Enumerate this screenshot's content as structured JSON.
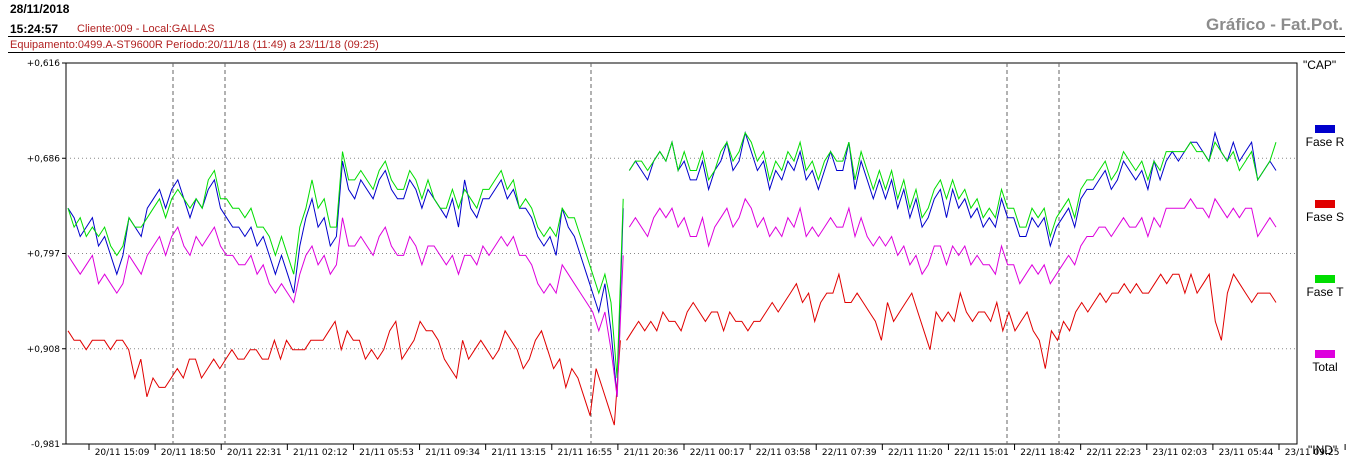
{
  "header": {
    "date": "28/11/2018",
    "time": "15:24:57",
    "client": "Cliente:009 - Local:GALLAS",
    "title": "Gráfico - Fat.Pot.",
    "equipment": "Equipamento:0499.A-ST9600R Período:20/11/18 (11:49) a 23/11/18 (09:25)"
  },
  "chart_data": {
    "type": "line",
    "title": "Gráfico - Fat.Pot.",
    "top_label": "\"CAP\"",
    "bottom_label": "\"IND\"",
    "y_ticks": [
      "+0,616",
      "+0,686",
      "+0,797",
      "+0,908",
      "-0,981"
    ],
    "x_ticks": [
      "20/11 15:09",
      "20/11 18:50",
      "20/11 22:31",
      "21/11 02:12",
      "21/11 05:53",
      "21/11 09:34",
      "21/11 13:15",
      "21/11 16:55",
      "21/11 20:36",
      "22/11 00:17",
      "22/11 03:58",
      "22/11 07:39",
      "22/11 11:20",
      "22/11 15:01",
      "22/11 18:42",
      "22/11 22:23",
      "23/11 02:03",
      "23/11 05:44",
      "23/11 09:25"
    ],
    "grid": true,
    "legend_position": "right",
    "series": [
      {
        "name": "Fase R",
        "color": "#0000cc",
        "values": [
          0.77,
          0.78,
          0.8,
          0.79,
          0.78,
          0.81,
          0.8,
          0.82,
          0.84,
          0.82,
          0.78,
          0.79,
          0.8,
          0.77,
          0.76,
          0.75,
          0.77,
          0.75,
          0.74,
          0.76,
          0.78,
          0.76,
          0.77,
          0.75,
          0.74,
          0.77,
          0.78,
          0.79,
          0.79,
          0.8,
          0.79,
          0.81,
          0.8,
          0.82,
          0.84,
          0.82,
          0.84,
          0.86,
          0.81,
          0.78,
          0.76,
          0.79,
          0.78,
          0.81,
          0.8,
          0.72,
          0.75,
          0.76,
          0.74,
          0.75,
          0.76,
          0.74,
          0.73,
          0.75,
          0.76,
          0.76,
          0.74,
          0.75,
          0.77,
          0.75,
          0.76,
          0.77,
          0.78,
          0.76,
          0.79,
          0.74,
          0.77,
          0.78,
          0.76,
          0.76,
          0.75,
          0.74,
          0.76,
          0.75,
          0.77,
          0.77,
          0.78,
          0.8,
          0.81,
          0.8,
          0.82,
          0.77,
          0.79,
          0.8,
          0.82,
          0.84,
          0.86,
          0.88,
          0.85,
          0.9,
          0.97,
          0.77,
          0.73,
          0.72,
          0.73,
          0.74,
          0.72,
          0.71,
          0.72,
          0.7,
          0.73,
          0.72,
          0.74,
          0.74,
          0.72,
          0.75,
          0.73,
          0.72,
          0.7,
          0.73,
          0.72,
          0.69,
          0.71,
          0.73,
          0.72,
          0.75,
          0.73,
          0.74,
          0.72,
          0.73,
          0.71,
          0.74,
          0.73,
          0.75,
          0.73,
          0.71,
          0.73,
          0.73,
          0.7,
          0.75,
          0.72,
          0.74,
          0.76,
          0.74,
          0.76,
          0.74,
          0.77,
          0.75,
          0.78,
          0.76,
          0.79,
          0.78,
          0.76,
          0.75,
          0.78,
          0.75,
          0.77,
          0.76,
          0.78,
          0.77,
          0.79,
          0.78,
          0.79,
          0.76,
          0.78,
          0.78,
          0.8,
          0.8,
          0.78,
          0.79,
          0.78,
          0.81,
          0.79,
          0.78,
          0.77,
          0.79,
          0.76,
          0.75,
          0.75,
          0.74,
          0.73,
          0.75,
          0.74,
          0.72,
          0.73,
          0.74,
          0.73,
          0.75,
          0.72,
          0.74,
          0.72,
          0.71,
          0.72,
          0.71,
          0.7,
          0.7,
          0.71,
          0.72,
          0.69,
          0.71,
          0.72,
          0.7,
          0.72,
          0.71,
          0.7,
          0.74,
          0.73,
          0.72,
          0.73
        ]
      },
      {
        "name": "Fase S",
        "color": "#e00000",
        "values": [
          0.9,
          0.91,
          0.91,
          0.92,
          0.91,
          0.91,
          0.91,
          0.92,
          0.91,
          0.91,
          0.92,
          0.95,
          0.93,
          0.97,
          0.95,
          0.96,
          0.96,
          0.95,
          0.94,
          0.95,
          0.93,
          0.93,
          0.95,
          0.94,
          0.93,
          0.94,
          0.93,
          0.92,
          0.93,
          0.93,
          0.92,
          0.92,
          0.93,
          0.93,
          0.91,
          0.93,
          0.91,
          0.92,
          0.92,
          0.92,
          0.91,
          0.91,
          0.91,
          0.9,
          0.89,
          0.92,
          0.9,
          0.91,
          0.91,
          0.93,
          0.92,
          0.93,
          0.92,
          0.9,
          0.89,
          0.93,
          0.92,
          0.91,
          0.89,
          0.9,
          0.9,
          0.91,
          0.93,
          0.94,
          0.95,
          0.91,
          0.93,
          0.92,
          0.91,
          0.92,
          0.93,
          0.92,
          0.9,
          0.91,
          0.92,
          0.94,
          0.93,
          0.91,
          0.9,
          0.92,
          0.94,
          0.93,
          0.96,
          0.94,
          0.95,
          0.97,
          0.99,
          0.94,
          0.96,
          0.98,
          1.0,
          0.91,
          0.91,
          0.9,
          0.89,
          0.9,
          0.89,
          0.9,
          0.88,
          0.89,
          0.89,
          0.9,
          0.88,
          0.87,
          0.88,
          0.89,
          0.88,
          0.88,
          0.9,
          0.88,
          0.89,
          0.89,
          0.9,
          0.89,
          0.89,
          0.88,
          0.87,
          0.88,
          0.87,
          0.86,
          0.85,
          0.87,
          0.86,
          0.89,
          0.87,
          0.86,
          0.86,
          0.84,
          0.87,
          0.87,
          0.86,
          0.87,
          0.88,
          0.89,
          0.91,
          0.87,
          0.89,
          0.88,
          0.87,
          0.86,
          0.88,
          0.9,
          0.92,
          0.88,
          0.89,
          0.88,
          0.89,
          0.86,
          0.88,
          0.89,
          0.88,
          0.88,
          0.89,
          0.87,
          0.9,
          0.88,
          0.9,
          0.89,
          0.88,
          0.9,
          0.91,
          0.94,
          0.9,
          0.91,
          0.89,
          0.9,
          0.88,
          0.87,
          0.88,
          0.87,
          0.86,
          0.87,
          0.86,
          0.86,
          0.85,
          0.86,
          0.85,
          0.86,
          0.86,
          0.85,
          0.84,
          0.85,
          0.84,
          0.84,
          0.86,
          0.84,
          0.86,
          0.85,
          0.84,
          0.89,
          0.91,
          0.86,
          0.84,
          0.85,
          0.86,
          0.87,
          0.86,
          0.86,
          0.86,
          0.87
        ]
      },
      {
        "name": "Fase T",
        "color": "#00dd00",
        "values": [
          0.77,
          0.79,
          0.78,
          0.8,
          0.79,
          0.8,
          0.79,
          0.81,
          0.82,
          0.81,
          0.78,
          0.79,
          0.79,
          0.78,
          0.77,
          0.76,
          0.78,
          0.76,
          0.75,
          0.76,
          0.77,
          0.76,
          0.77,
          0.74,
          0.73,
          0.76,
          0.76,
          0.77,
          0.77,
          0.78,
          0.77,
          0.79,
          0.79,
          0.8,
          0.82,
          0.8,
          0.82,
          0.84,
          0.79,
          0.77,
          0.74,
          0.77,
          0.76,
          0.79,
          0.79,
          0.71,
          0.74,
          0.74,
          0.73,
          0.74,
          0.75,
          0.73,
          0.72,
          0.74,
          0.75,
          0.75,
          0.73,
          0.74,
          0.76,
          0.74,
          0.76,
          0.77,
          0.77,
          0.75,
          0.77,
          0.75,
          0.76,
          0.77,
          0.75,
          0.75,
          0.74,
          0.73,
          0.75,
          0.74,
          0.77,
          0.76,
          0.77,
          0.79,
          0.8,
          0.79,
          0.8,
          0.77,
          0.78,
          0.78,
          0.8,
          0.82,
          0.84,
          0.86,
          0.84,
          0.87,
          0.95,
          0.76,
          0.73,
          0.72,
          0.72,
          0.73,
          0.72,
          0.71,
          0.72,
          0.7,
          0.73,
          0.71,
          0.73,
          0.73,
          0.71,
          0.74,
          0.73,
          0.71,
          0.7,
          0.72,
          0.71,
          0.69,
          0.7,
          0.72,
          0.71,
          0.74,
          0.72,
          0.73,
          0.71,
          0.72,
          0.7,
          0.73,
          0.72,
          0.74,
          0.72,
          0.71,
          0.72,
          0.72,
          0.7,
          0.74,
          0.71,
          0.73,
          0.75,
          0.73,
          0.75,
          0.73,
          0.76,
          0.74,
          0.77,
          0.75,
          0.78,
          0.77,
          0.75,
          0.74,
          0.76,
          0.74,
          0.76,
          0.75,
          0.77,
          0.76,
          0.78,
          0.77,
          0.78,
          0.75,
          0.77,
          0.77,
          0.79,
          0.79,
          0.77,
          0.78,
          0.77,
          0.8,
          0.78,
          0.77,
          0.76,
          0.78,
          0.75,
          0.74,
          0.74,
          0.73,
          0.72,
          0.74,
          0.73,
          0.71,
          0.72,
          0.73,
          0.72,
          0.74,
          0.72,
          0.73,
          0.71,
          0.71,
          0.71,
          0.71,
          0.7,
          0.71,
          0.71,
          0.72,
          0.7,
          0.71,
          0.72,
          0.71,
          0.73,
          0.72,
          0.71,
          0.74,
          0.73,
          0.72,
          0.7
        ]
      },
      {
        "name": "Total",
        "color": "#dd00dd",
        "values": [
          0.82,
          0.83,
          0.84,
          0.83,
          0.82,
          0.85,
          0.84,
          0.85,
          0.86,
          0.85,
          0.82,
          0.83,
          0.84,
          0.82,
          0.81,
          0.8,
          0.82,
          0.8,
          0.79,
          0.81,
          0.82,
          0.8,
          0.81,
          0.8,
          0.79,
          0.81,
          0.82,
          0.82,
          0.83,
          0.83,
          0.82,
          0.84,
          0.83,
          0.85,
          0.86,
          0.85,
          0.86,
          0.87,
          0.84,
          0.82,
          0.81,
          0.83,
          0.82,
          0.84,
          0.83,
          0.78,
          0.81,
          0.81,
          0.8,
          0.81,
          0.82,
          0.8,
          0.79,
          0.81,
          0.82,
          0.82,
          0.8,
          0.81,
          0.83,
          0.81,
          0.81,
          0.82,
          0.83,
          0.82,
          0.84,
          0.82,
          0.82,
          0.83,
          0.81,
          0.82,
          0.81,
          0.8,
          0.81,
          0.8,
          0.82,
          0.82,
          0.83,
          0.85,
          0.86,
          0.85,
          0.86,
          0.83,
          0.84,
          0.85,
          0.86,
          0.87,
          0.88,
          0.9,
          0.88,
          0.92,
          0.97,
          0.82,
          0.79,
          0.78,
          0.79,
          0.8,
          0.78,
          0.77,
          0.78,
          0.77,
          0.79,
          0.78,
          0.8,
          0.8,
          0.78,
          0.81,
          0.79,
          0.78,
          0.77,
          0.79,
          0.78,
          0.76,
          0.77,
          0.79,
          0.78,
          0.8,
          0.79,
          0.8,
          0.78,
          0.79,
          0.77,
          0.8,
          0.79,
          0.8,
          0.79,
          0.78,
          0.79,
          0.79,
          0.77,
          0.8,
          0.78,
          0.8,
          0.81,
          0.8,
          0.81,
          0.8,
          0.82,
          0.81,
          0.83,
          0.82,
          0.84,
          0.83,
          0.81,
          0.81,
          0.83,
          0.81,
          0.82,
          0.81,
          0.83,
          0.82,
          0.83,
          0.83,
          0.84,
          0.81,
          0.83,
          0.83,
          0.85,
          0.84,
          0.83,
          0.84,
          0.83,
          0.85,
          0.84,
          0.83,
          0.82,
          0.83,
          0.81,
          0.8,
          0.8,
          0.79,
          0.79,
          0.8,
          0.79,
          0.78,
          0.79,
          0.79,
          0.78,
          0.8,
          0.78,
          0.79,
          0.77,
          0.77,
          0.77,
          0.77,
          0.76,
          0.77,
          0.77,
          0.78,
          0.76,
          0.77,
          0.78,
          0.77,
          0.78,
          0.77,
          0.77,
          0.8,
          0.79,
          0.78,
          0.79
        ]
      }
    ]
  }
}
